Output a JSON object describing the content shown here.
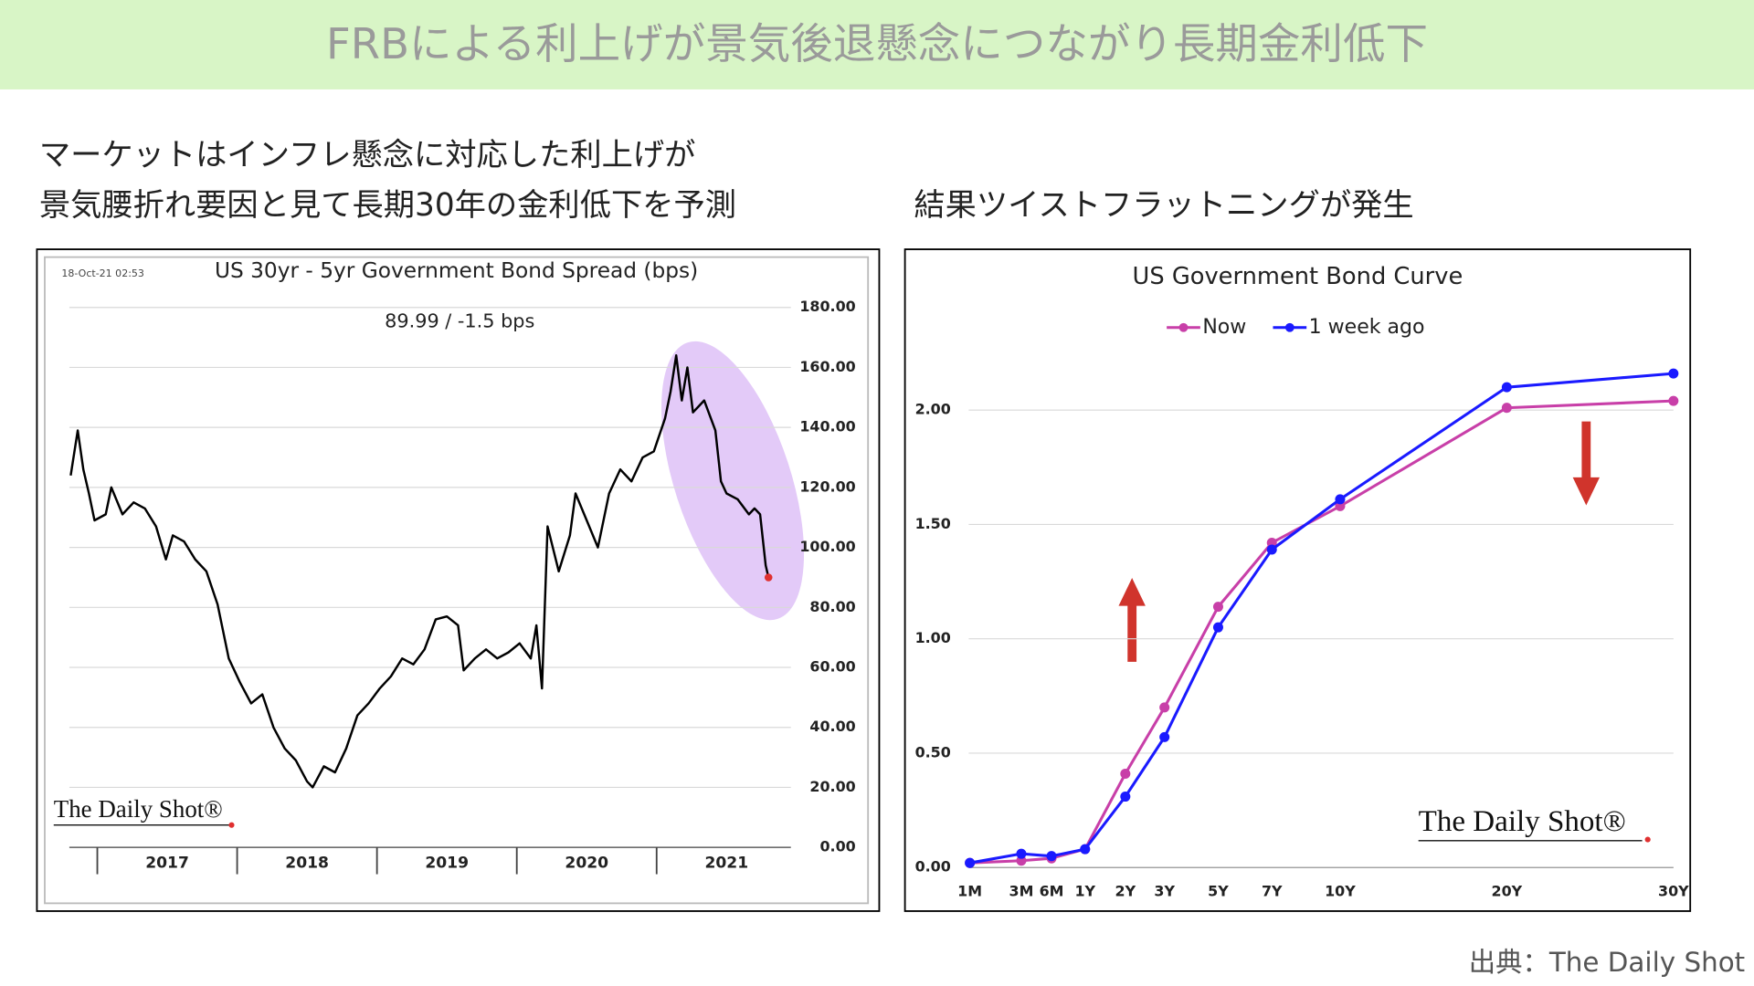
{
  "header": {
    "title": "FRBによる利上げが景気後退懸念につながり長期金利低下"
  },
  "left_caption": [
    "マーケットはインフレ懸念に対応した利上げが",
    "景気腰折れ要因と見て長期30年の金利低下を予測"
  ],
  "right_caption": "結果ツイストフラットニングが発生",
  "chart_data": [
    {
      "type": "line",
      "title": "US 30yr - 5yr Government Bond Spread (bps)",
      "annotations": [
        "18-Oct-21 02:53",
        "89.99  /  -1.5 bps"
      ],
      "logo": "The Daily Shot®",
      "color": "#000000",
      "marker_color": "#e03030",
      "highlight_color": "#d9b8f5",
      "x": [
        2016.81,
        2016.86,
        2016.9,
        2016.94,
        2016.98,
        2017.06,
        2017.1,
        2017.18,
        2017.26,
        2017.34,
        2017.42,
        2017.49,
        2017.54,
        2017.62,
        2017.7,
        2017.78,
        2017.86,
        2017.94,
        2018.02,
        2018.1,
        2018.18,
        2018.26,
        2018.34,
        2018.42,
        2018.5,
        2018.54,
        2018.62,
        2018.7,
        2018.78,
        2018.86,
        2018.94,
        2019.02,
        2019.1,
        2019.18,
        2019.26,
        2019.34,
        2019.42,
        2019.5,
        2019.58,
        2019.62,
        2019.7,
        2019.78,
        2019.86,
        2019.94,
        2020.02,
        2020.1,
        2020.14,
        2020.18,
        2020.22,
        2020.3,
        2020.38,
        2020.42,
        2020.5,
        2020.58,
        2020.66,
        2020.74,
        2020.82,
        2020.9,
        2020.98,
        2021.06,
        2021.1,
        2021.14,
        2021.18,
        2021.22,
        2021.26,
        2021.34,
        2021.42,
        2021.46,
        2021.5,
        2021.58,
        2021.66,
        2021.7,
        2021.74,
        2021.78,
        2021.8
      ],
      "values": [
        124,
        139,
        126,
        118,
        109,
        111,
        120,
        111,
        115,
        113,
        107,
        96,
        104,
        102,
        96,
        92,
        81,
        63,
        55,
        48,
        51,
        40,
        33,
        29,
        22,
        20,
        27,
        25,
        33,
        44,
        48,
        53,
        57,
        63,
        61,
        66,
        76,
        77,
        74,
        59,
        63,
        66,
        63,
        65,
        68,
        63,
        74,
        53,
        107,
        92,
        104,
        118,
        109,
        100,
        118,
        126,
        122,
        130,
        132,
        143,
        152,
        164,
        149,
        160,
        145,
        149,
        139,
        122,
        118,
        116,
        111,
        113,
        111,
        94,
        89.99
      ],
      "xlim": [
        2016.8,
        2021.96
      ],
      "xticks": [
        {
          "value": 2017.5,
          "label": "2017"
        },
        {
          "value": 2018.5,
          "label": "2018"
        },
        {
          "value": 2019.5,
          "label": "2019"
        },
        {
          "value": 2020.5,
          "label": "2020"
        },
        {
          "value": 2021.5,
          "label": "2021"
        }
      ],
      "ylim": [
        0,
        180
      ],
      "yticks": [
        {
          "value": 0,
          "label": "0.00"
        },
        {
          "value": 20,
          "label": "20.00"
        },
        {
          "value": 40,
          "label": "40.00"
        },
        {
          "value": 60,
          "label": "60.00"
        },
        {
          "value": 80,
          "label": "80.00"
        },
        {
          "value": 100,
          "label": "100.00"
        },
        {
          "value": 120,
          "label": "120.00"
        },
        {
          "value": 140,
          "label": "140.00"
        },
        {
          "value": 160,
          "label": "160.00"
        },
        {
          "value": 180,
          "label": "180.00"
        }
      ],
      "grid": true
    },
    {
      "type": "line",
      "title": "US Government Bond Curve",
      "logo": "The Daily Shot®",
      "categories": [
        "1M",
        "3M",
        "6M",
        "1Y",
        "2Y",
        "3Y",
        "5Y",
        "7Y",
        "10Y",
        "20Y",
        "30Y"
      ],
      "series": [
        {
          "name": "Now",
          "color": "#c83fa8",
          "values": [
            0.02,
            0.03,
            0.04,
            0.08,
            0.41,
            0.7,
            1.14,
            1.42,
            1.58,
            2.01,
            2.04
          ]
        },
        {
          "name": "1 week ago",
          "color": "#1a1aff",
          "values": [
            0.02,
            0.06,
            0.05,
            0.08,
            0.31,
            0.57,
            1.05,
            1.39,
            1.61,
            2.1,
            2.16
          ]
        }
      ],
      "ylim": [
        0,
        2.4
      ],
      "yticks": [
        {
          "value": 0,
          "label": "0.00"
        },
        {
          "value": 0.5,
          "label": "0.50"
        },
        {
          "value": 1,
          "label": "1.00"
        },
        {
          "value": 1.5,
          "label": "1.50"
        },
        {
          "value": 2,
          "label": "2.00"
        }
      ],
      "grid": true,
      "legend": "top"
    }
  ],
  "source": "出典：The Daily Shot"
}
